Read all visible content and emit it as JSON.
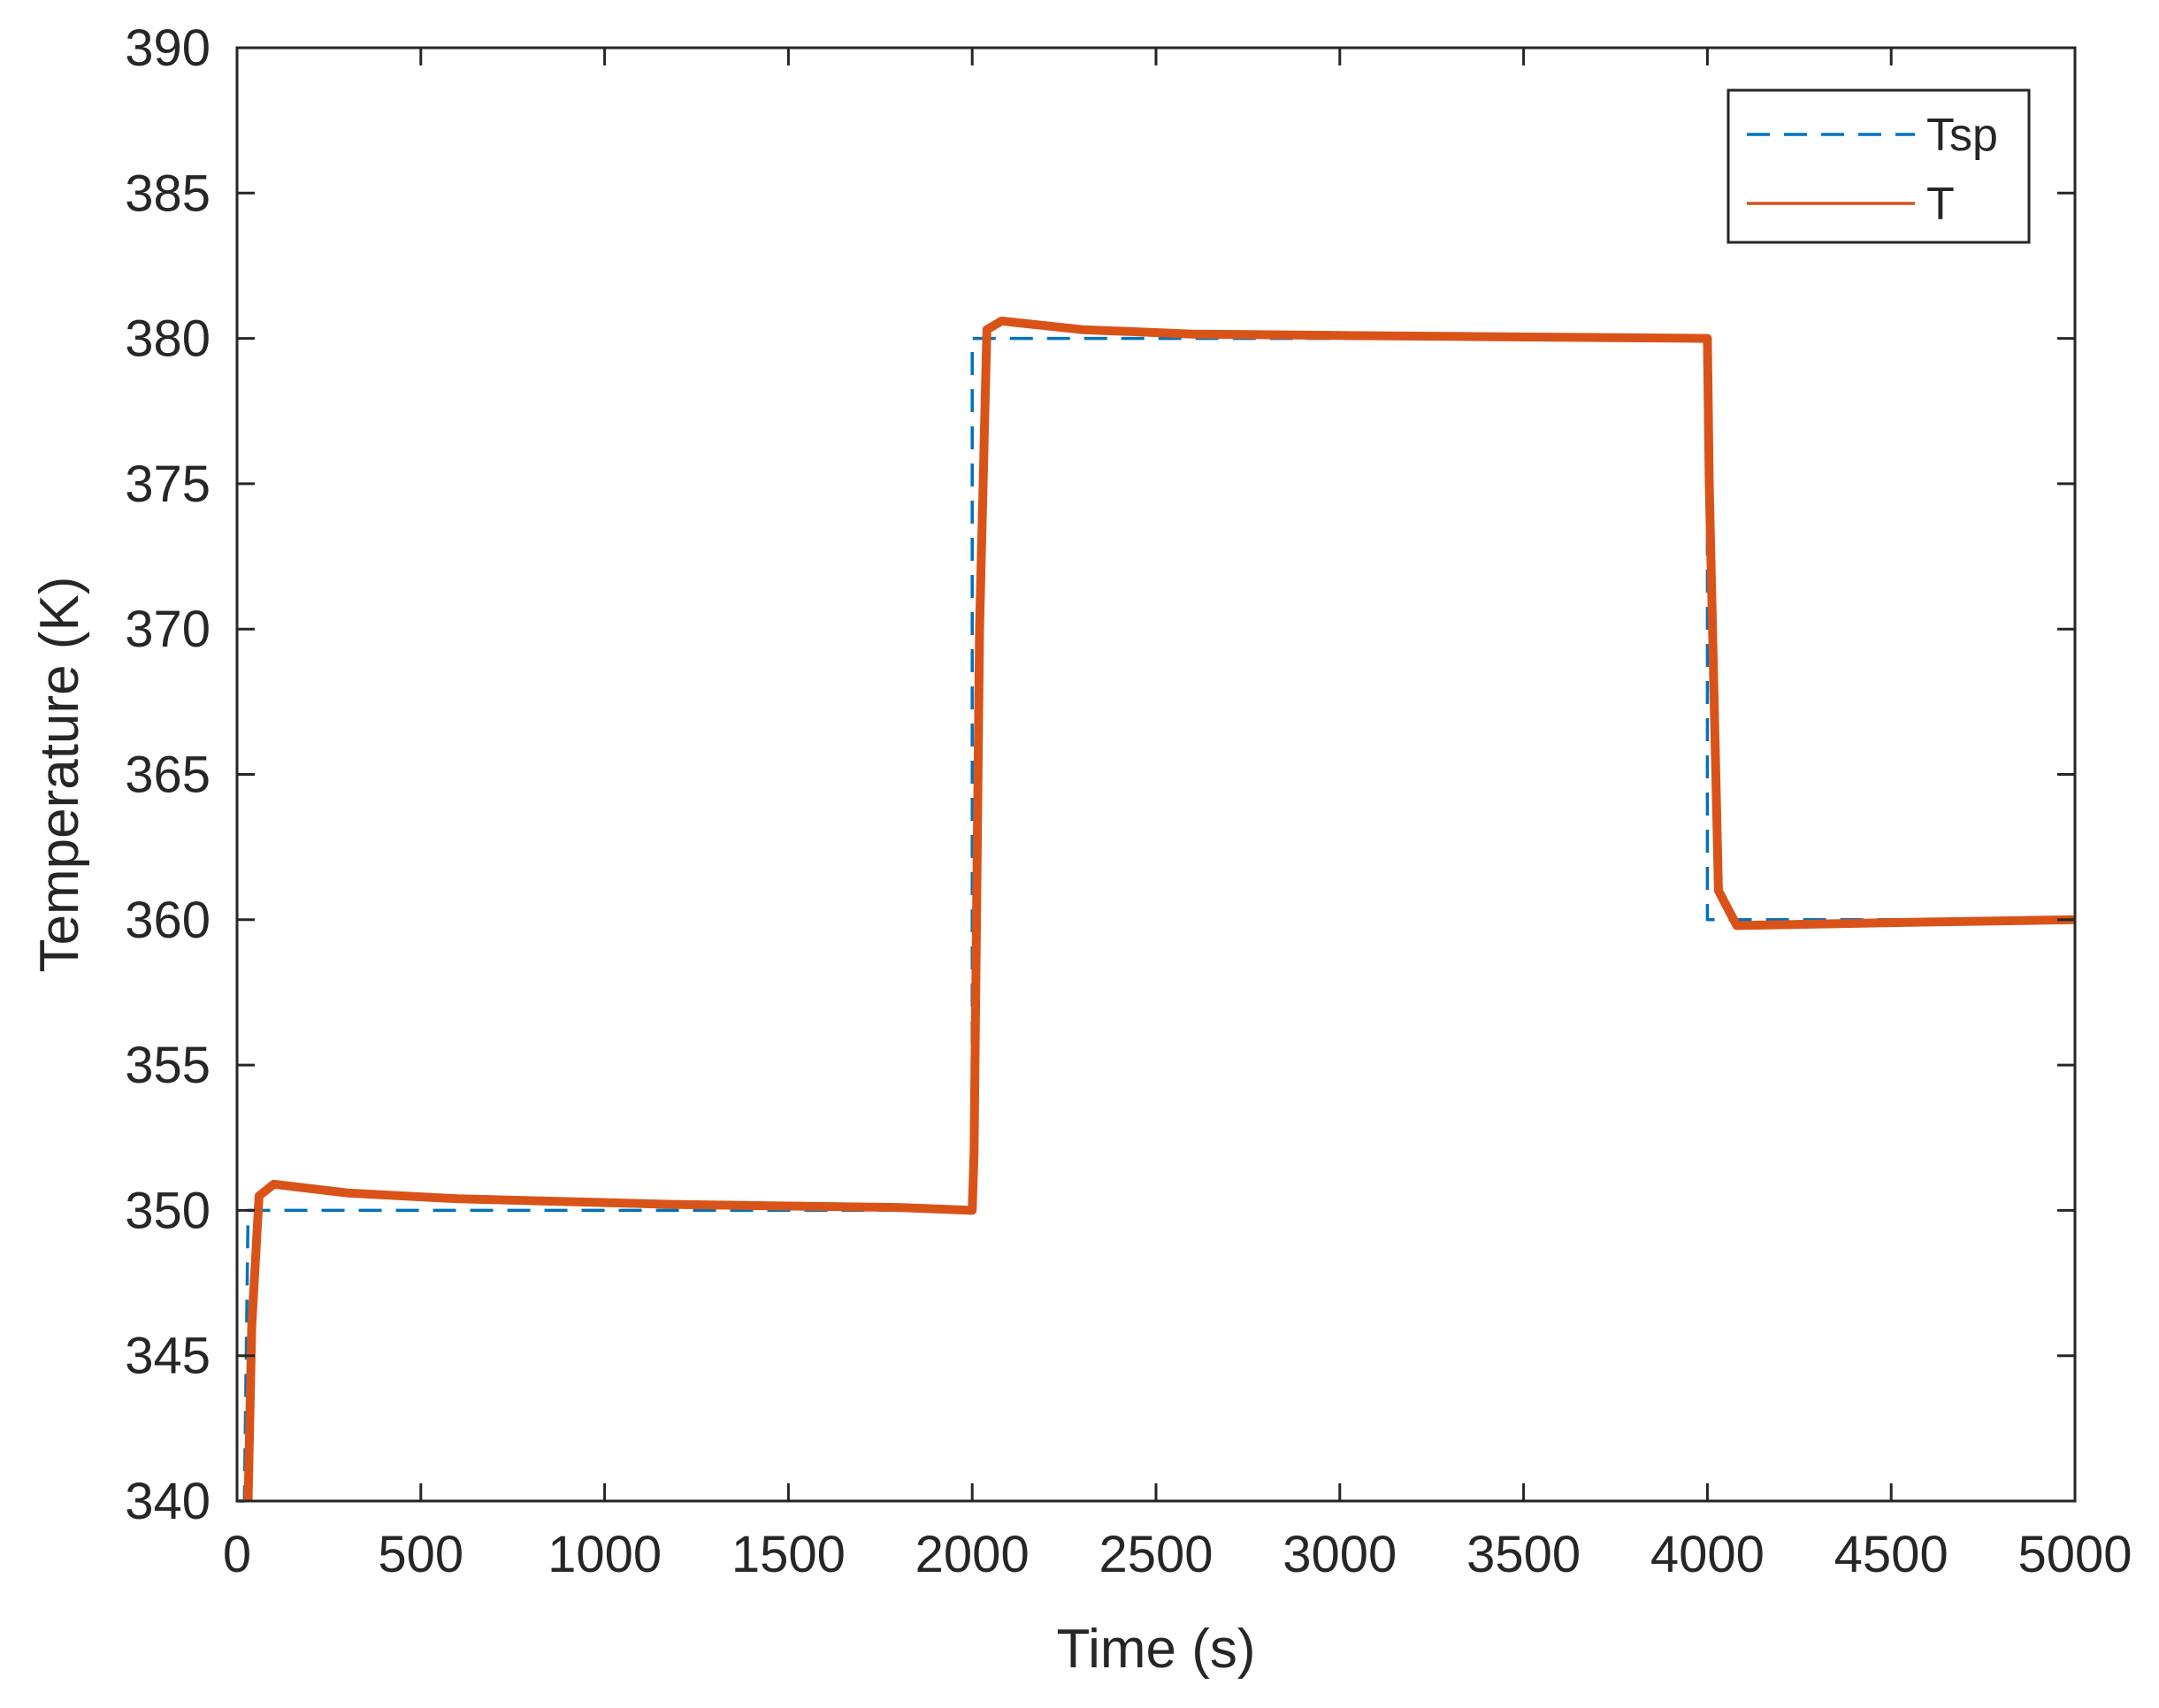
{
  "chart_data": {
    "type": "line",
    "title": "",
    "xlabel": "Time (s)",
    "ylabel": "Temperature (K)",
    "xlim": [
      0,
      5000
    ],
    "ylim": [
      340,
      390
    ],
    "xticks": [
      0,
      500,
      1000,
      1500,
      2000,
      2500,
      3000,
      3500,
      4000,
      4500,
      5000
    ],
    "yticks": [
      340,
      345,
      350,
      355,
      360,
      365,
      370,
      375,
      380,
      385,
      390
    ],
    "grid": false,
    "legend_position": "top-right",
    "series": [
      {
        "name": "Tsp",
        "style": "dashed",
        "color": "#0072BD",
        "x": [
          0,
          20,
          30,
          2000,
          2000,
          4000,
          4000,
          5000
        ],
        "y": [
          340,
          340,
          350,
          350,
          380,
          380,
          360,
          360
        ]
      },
      {
        "name": "T",
        "style": "solid",
        "color": "#D95319",
        "x": [
          30,
          40,
          60,
          100,
          300,
          600,
          900,
          1200,
          1500,
          1800,
          2000,
          2005,
          2020,
          2040,
          2080,
          2300,
          2600,
          3000,
          3500,
          4000,
          4005,
          4030,
          4080,
          4500,
          5000
        ],
        "y": [
          340,
          346,
          350.5,
          350.9,
          350.6,
          350.4,
          350.3,
          350.2,
          350.15,
          350.1,
          350.0,
          352,
          370,
          380.3,
          380.6,
          380.3,
          380.15,
          380.1,
          380.05,
          380.0,
          375,
          361,
          359.8,
          359.9,
          360.0
        ]
      }
    ]
  }
}
